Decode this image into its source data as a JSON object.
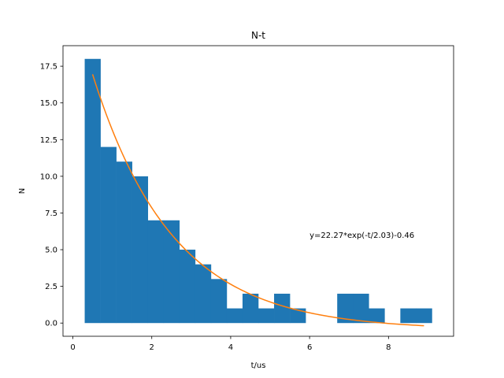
{
  "chart_data": {
    "type": "bar",
    "title": "N-t",
    "xlabel": "t/us",
    "ylabel": "N",
    "xlim": [
      -0.25,
      9.65
    ],
    "ylim": [
      -0.9,
      18.9
    ],
    "xticks": [
      0,
      2,
      4,
      6,
      8
    ],
    "xtick_labels": [
      "0",
      "2",
      "4",
      "6",
      "8"
    ],
    "yticks": [
      0.0,
      2.5,
      5.0,
      7.5,
      10.0,
      12.5,
      15.0,
      17.5
    ],
    "ytick_labels": [
      "0.0",
      "2.5",
      "5.0",
      "7.5",
      "10.0",
      "12.5",
      "15.0",
      "17.5"
    ],
    "grid": false,
    "histogram": {
      "color": "#1f77b4",
      "bin_edges": [
        0.3,
        0.7,
        1.1,
        1.5,
        1.9,
        2.3,
        2.7,
        3.1,
        3.5,
        3.9,
        4.3,
        4.7,
        5.1,
        5.5,
        5.9,
        6.3,
        6.7,
        7.1,
        7.5,
        7.9,
        8.3,
        8.7,
        9.1
      ],
      "counts": [
        18,
        12,
        11,
        10,
        7,
        7,
        5,
        4,
        3,
        1,
        2,
        1,
        2,
        1,
        0,
        0,
        2,
        2,
        1,
        0,
        1,
        1
      ]
    },
    "fit": {
      "color": "#ff7f0e",
      "A": 22.27,
      "tau": 2.03,
      "c": -0.46,
      "x_range": [
        0.5,
        8.9
      ]
    },
    "annotation": {
      "text": "y=22.27*exp(-t/2.03)-0.46",
      "x": 6.0,
      "y": 6.0
    }
  }
}
